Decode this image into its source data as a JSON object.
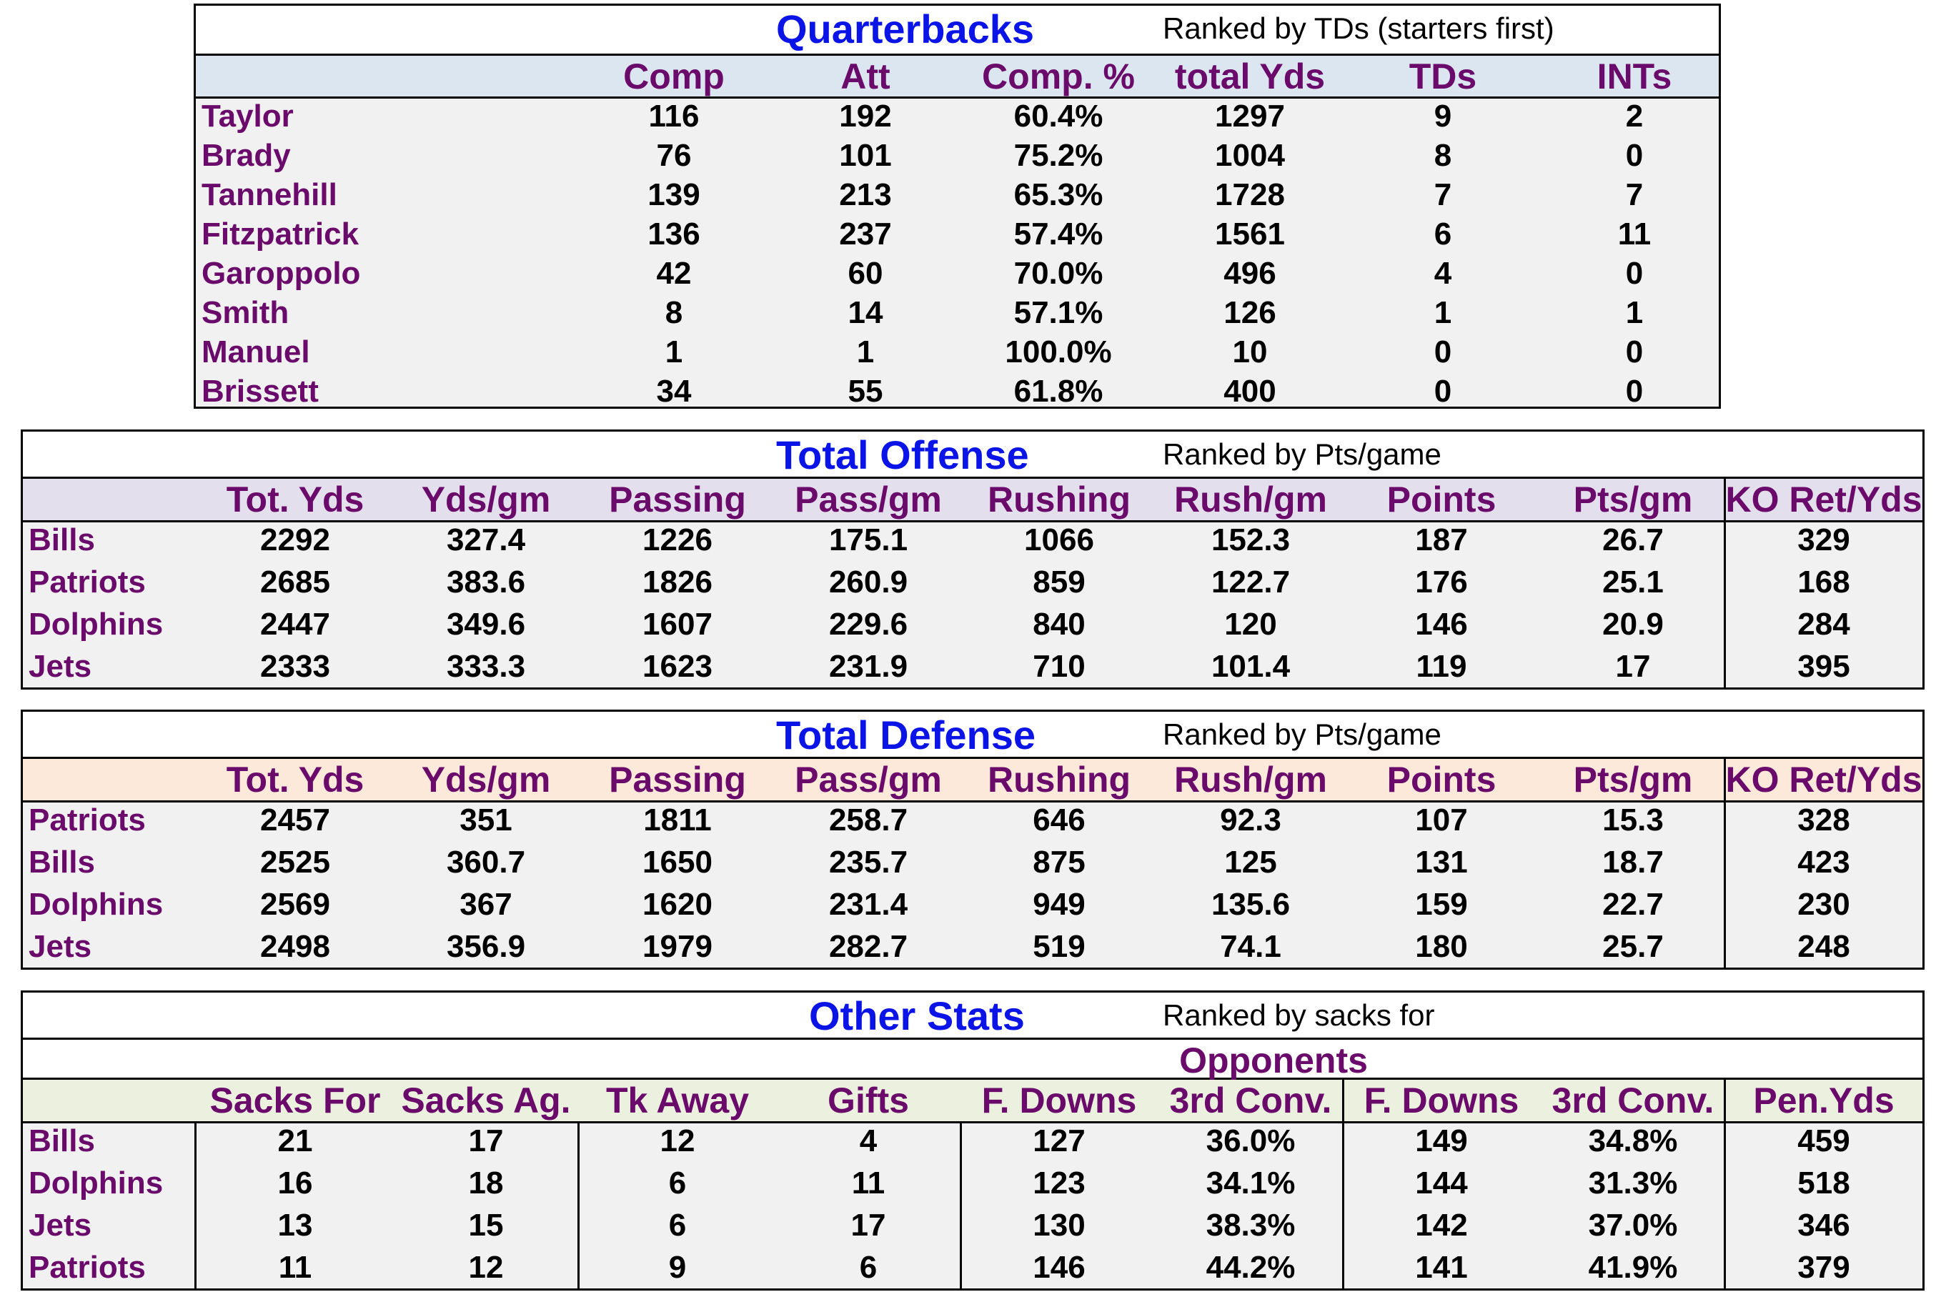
{
  "quarterbacks": {
    "title": "Quarterbacks",
    "subtitle": "Ranked by TDs (starters first)",
    "columns": [
      "Comp",
      "Att",
      "Comp. %",
      "total Yds",
      "TDs",
      "INTs"
    ],
    "header_color": "#dce6f1",
    "rows": [
      {
        "name": "Taylor",
        "values": [
          "116",
          "192",
          "60.4%",
          "1297",
          "9",
          "2"
        ]
      },
      {
        "name": "Brady",
        "values": [
          "76",
          "101",
          "75.2%",
          "1004",
          "8",
          "0"
        ]
      },
      {
        "name": "Tannehill",
        "values": [
          "139",
          "213",
          "65.3%",
          "1728",
          "7",
          "7"
        ]
      },
      {
        "name": "Fitzpatrick",
        "values": [
          "136",
          "237",
          "57.4%",
          "1561",
          "6",
          "11"
        ]
      },
      {
        "name": "Garoppolo",
        "values": [
          "42",
          "60",
          "70.0%",
          "496",
          "4",
          "0"
        ]
      },
      {
        "name": "Smith",
        "values": [
          "8",
          "14",
          "57.1%",
          "126",
          "1",
          "1"
        ]
      },
      {
        "name": "Manuel",
        "values": [
          "1",
          "1",
          "100.0%",
          "10",
          "0",
          "0"
        ]
      },
      {
        "name": "Brissett",
        "values": [
          "34",
          "55",
          "61.8%",
          "400",
          "0",
          "0"
        ]
      }
    ]
  },
  "offense": {
    "title": "Total Offense",
    "subtitle": "Ranked by Pts/game",
    "columns": [
      "Tot. Yds",
      "Yds/gm",
      "Passing",
      "Pass/gm",
      "Rushing",
      "Rush/gm",
      "Points",
      "Pts/gm",
      "KO Ret/Yds"
    ],
    "header_color": "#e4dfec",
    "rows": [
      {
        "name": "Bills",
        "values": [
          "2292",
          "327.4",
          "1226",
          "175.1",
          "1066",
          "152.3",
          "187",
          "26.7",
          "329"
        ]
      },
      {
        "name": "Patriots",
        "values": [
          "2685",
          "383.6",
          "1826",
          "260.9",
          "859",
          "122.7",
          "176",
          "25.1",
          "168"
        ]
      },
      {
        "name": "Dolphins",
        "values": [
          "2447",
          "349.6",
          "1607",
          "229.6",
          "840",
          "120",
          "146",
          "20.9",
          "284"
        ]
      },
      {
        "name": "Jets",
        "values": [
          "2333",
          "333.3",
          "1623",
          "231.9",
          "710",
          "101.4",
          "119",
          "17",
          "395"
        ]
      }
    ]
  },
  "defense": {
    "title": "Total Defense",
    "subtitle": "Ranked by Pts/game",
    "columns": [
      "Tot. Yds",
      "Yds/gm",
      "Passing",
      "Pass/gm",
      "Rushing",
      "Rush/gm",
      "Points",
      "Pts/gm",
      "KO Ret/Yds"
    ],
    "header_color": "#fde9d9",
    "rows": [
      {
        "name": "Patriots",
        "values": [
          "2457",
          "351",
          "1811",
          "258.7",
          "646",
          "92.3",
          "107",
          "15.3",
          "328"
        ]
      },
      {
        "name": "Bills",
        "values": [
          "2525",
          "360.7",
          "1650",
          "235.7",
          "875",
          "125",
          "131",
          "18.7",
          "423"
        ]
      },
      {
        "name": "Dolphins",
        "values": [
          "2569",
          "367",
          "1620",
          "231.4",
          "949",
          "135.6",
          "159",
          "22.7",
          "230"
        ]
      },
      {
        "name": "Jets",
        "values": [
          "2498",
          "356.9",
          "1979",
          "282.7",
          "519",
          "74.1",
          "180",
          "25.7",
          "248"
        ]
      }
    ]
  },
  "other": {
    "title": "Other Stats",
    "subtitle": "Ranked by sacks for",
    "group_label": "Opponents",
    "columns": [
      "Sacks For",
      "Sacks Ag.",
      "Tk Away",
      "Gifts",
      "F. Downs",
      "3rd Conv.",
      "F. Downs",
      "3rd Conv.",
      "Pen.Yds"
    ],
    "header_color": "#ebf1de",
    "rows": [
      {
        "name": "Bills",
        "values": [
          "21",
          "17",
          "12",
          "4",
          "127",
          "36.0%",
          "149",
          "34.8%",
          "459"
        ]
      },
      {
        "name": "Dolphins",
        "values": [
          "16",
          "18",
          "6",
          "11",
          "123",
          "34.1%",
          "144",
          "31.3%",
          "518"
        ]
      },
      {
        "name": "Jets",
        "values": [
          "13",
          "15",
          "6",
          "17",
          "130",
          "38.3%",
          "142",
          "37.0%",
          "346"
        ]
      },
      {
        "name": "Patriots",
        "values": [
          "11",
          "12",
          "9",
          "6",
          "146",
          "44.2%",
          "141",
          "41.9%",
          "379"
        ]
      }
    ]
  },
  "colors": {
    "title": "#0a14e6",
    "label": "#6a0a6a",
    "body_bg": "#f1f1f1"
  }
}
